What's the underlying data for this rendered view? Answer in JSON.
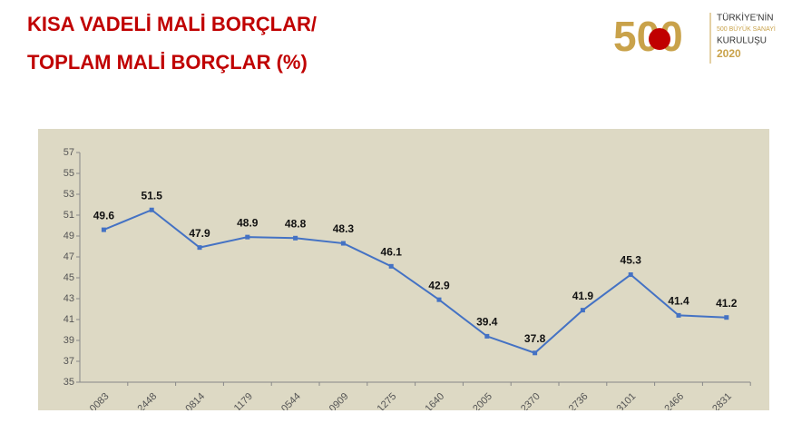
{
  "header": {
    "title_lines": [
      "KISA VADELİ MALİ BORÇLAR/",
      "TOPLAM MALİ BORÇLAR (%)"
    ],
    "logo": {
      "mark": "500",
      "lines": [
        "TÜRKİYE'NİN",
        "500 BÜYÜK SANAYİ",
        "KURULUŞU",
        "2020"
      ]
    }
  },
  "chart_data": {
    "type": "line",
    "categories": [
      "0083",
      "2448",
      "0814",
      "1179",
      "0544",
      "0909",
      "1275",
      "1640",
      "2005",
      "2370",
      "2736",
      "3101",
      "2466",
      "2831"
    ],
    "series": [
      {
        "name": "Kısa Vadeli Mali Borçlar / Toplam Mali Borçlar",
        "color": "#4472c4",
        "values": [
          49.6,
          51.5,
          47.9,
          48.9,
          48.8,
          48.3,
          46.1,
          42.9,
          39.4,
          37.8,
          41.9,
          45.3,
          41.4,
          41.2
        ]
      }
    ],
    "ylim": [
      35,
      57
    ],
    "yticks": [
      35,
      37,
      39,
      41,
      43,
      45,
      47,
      49,
      51,
      53,
      55,
      57
    ],
    "grid": false
  }
}
